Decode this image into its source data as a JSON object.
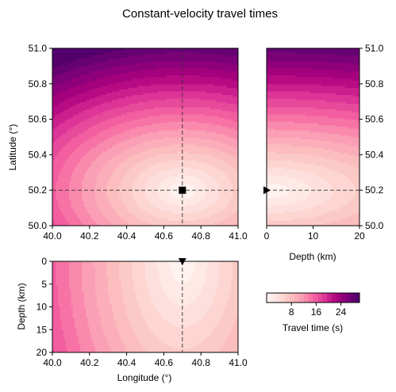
{
  "chart_data": {
    "type": "heatmap",
    "title": "Constant-velocity travel times",
    "colormap": "RdPu",
    "panels": [
      {
        "name": "map-view",
        "xlabel": "",
        "ylabel": "Latitude (°)",
        "xlim": [
          40.0,
          41.0
        ],
        "ylim": [
          50.0,
          51.0
        ],
        "x_ticks": [
          "40.0",
          "40.2",
          "40.4",
          "40.6",
          "40.8",
          "41.0"
        ],
        "y_ticks": [
          "50.0",
          "50.2",
          "50.4",
          "50.6",
          "50.8",
          "51.0"
        ]
      },
      {
        "name": "depth-latitude",
        "xlabel": "Depth (km)",
        "ylabel": "",
        "xlim": [
          0,
          20
        ],
        "ylim": [
          50.0,
          51.0
        ],
        "x_ticks": [
          "0",
          "10",
          "20"
        ],
        "y_ticks": [
          "50.0",
          "50.2",
          "50.4",
          "50.6",
          "50.8",
          "51.0"
        ]
      },
      {
        "name": "longitude-depth",
        "xlabel": "Longitude (°)",
        "ylabel": "Depth (km)",
        "xlim": [
          40.0,
          41.0
        ],
        "ylim": [
          20,
          0
        ],
        "x_ticks": [
          "40.0",
          "40.2",
          "40.4",
          "40.6",
          "40.8",
          "41.0"
        ],
        "y_ticks": [
          "0",
          "5",
          "10",
          "15",
          "20"
        ]
      }
    ],
    "source": {
      "longitude": 40.7,
      "latitude": 50.2,
      "depth": 0
    },
    "colorbar": {
      "label": "Travel time (s)",
      "range": [
        0,
        30
      ],
      "ticks": [
        "8",
        "16",
        "24"
      ],
      "tick_values": [
        8,
        16,
        24
      ]
    }
  },
  "colors": {
    "low": "#fff7f3",
    "mid": "#f768a1",
    "high": "#49006a"
  }
}
